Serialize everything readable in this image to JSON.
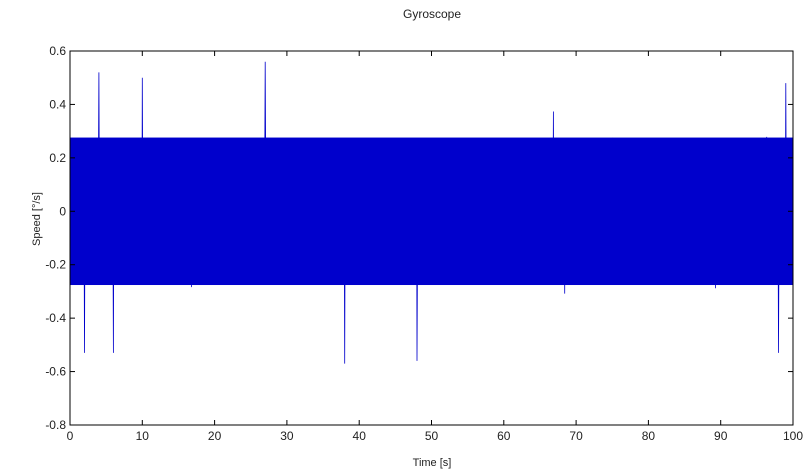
{
  "chart_data": {
    "type": "line",
    "title": "Gyroscope",
    "xlabel": "Time [s]",
    "ylabel": "Speed [°/s]",
    "xlim": [
      0,
      100
    ],
    "ylim": [
      -0.8,
      0.6
    ],
    "xticks": [
      "0",
      "10",
      "20",
      "30",
      "40",
      "50",
      "60",
      "70",
      "80",
      "90",
      "100"
    ],
    "yticks": [
      "0.6",
      "0.4",
      "0.2",
      "0",
      "-0.2",
      "-0.4",
      "-0.6",
      "-0.8"
    ],
    "grid": false,
    "series": [
      {
        "color": "#0000cc",
        "x_range": [
          0,
          100
        ],
        "mean": 0.0,
        "dense_band": [
          -0.3,
          0.3
        ],
        "peak_max": 0.56,
        "peak_min": -0.57,
        "notable_points": [
          {
            "x": 27,
            "y": 0.56
          },
          {
            "x": 4,
            "y": 0.52
          },
          {
            "x": 10,
            "y": 0.5
          },
          {
            "x": 38,
            "y": -0.57
          },
          {
            "x": 48,
            "y": -0.56
          },
          {
            "x": 2,
            "y": -0.53
          },
          {
            "x": 6,
            "y": -0.53
          },
          {
            "x": 99,
            "y": 0.48
          },
          {
            "x": 98,
            "y": -0.53
          }
        ]
      }
    ]
  }
}
